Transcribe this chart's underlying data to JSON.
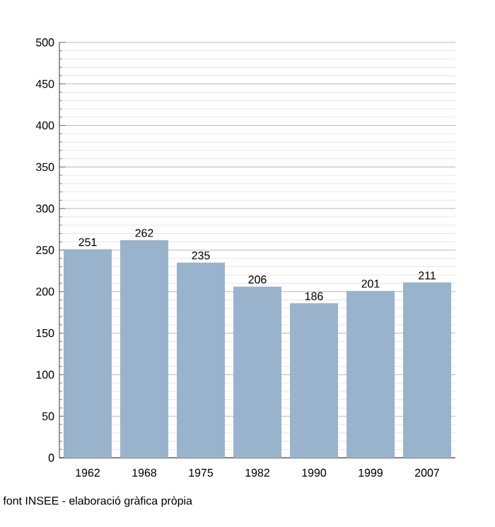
{
  "chart_data": {
    "type": "bar",
    "categories": [
      "1962",
      "1968",
      "1975",
      "1982",
      "1990",
      "1999",
      "2007"
    ],
    "values": [
      251,
      262,
      235,
      206,
      186,
      201,
      211
    ],
    "color": "#9ab3cc",
    "data_labels": true,
    "ylim": [
      0,
      500
    ],
    "yticks": [
      0,
      {
        "value": 10,
        "label": null
      },
      {
        "value": 20,
        "label": null
      },
      {
        "value": 30,
        "label": null
      },
      {
        "value": 40,
        "label": null
      },
      50,
      {
        "value": 60,
        "label": null
      },
      {
        "value": 70,
        "label": null
      },
      {
        "value": 80,
        "label": null
      },
      {
        "value": 90,
        "label": null
      },
      100,
      {
        "value": 110,
        "label": null
      },
      {
        "value": 120,
        "label": null
      },
      {
        "value": 130,
        "label": null
      },
      {
        "value": 140,
        "label": null
      },
      150,
      {
        "value": 160,
        "label": null
      },
      {
        "value": 170,
        "label": null
      },
      {
        "value": 180,
        "label": null
      },
      {
        "value": 190,
        "label": null
      },
      200,
      {
        "value": 210,
        "label": null
      },
      {
        "value": 220,
        "label": null
      },
      {
        "value": 230,
        "label": null
      },
      {
        "value": 240,
        "label": null
      },
      250,
      {
        "value": 260,
        "label": null
      },
      {
        "value": 270,
        "label": null
      },
      {
        "value": 280,
        "label": null
      },
      {
        "value": 290,
        "label": null
      },
      300,
      {
        "value": 310,
        "label": null
      },
      {
        "value": 320,
        "label": null
      },
      {
        "value": 330,
        "label": null
      },
      {
        "value": 340,
        "label": null
      },
      350,
      {
        "value": 360,
        "label": null
      },
      {
        "value": 370,
        "label": null
      },
      {
        "value": 380,
        "label": null
      },
      {
        "value": 390,
        "label": null
      },
      400,
      {
        "value": 410,
        "label": null
      },
      {
        "value": 420,
        "label": null
      },
      {
        "value": 430,
        "label": null
      },
      {
        "value": 440,
        "label": null
      },
      450,
      {
        "value": 460,
        "label": null
      },
      {
        "value": 470,
        "label": null
      },
      {
        "value": 480,
        "label": null
      },
      {
        "value": 490,
        "label": null
      },
      500
    ],
    "grid": "y",
    "annotations": [
      "font INSEE - elaboració gràfica pròpia"
    ]
  }
}
